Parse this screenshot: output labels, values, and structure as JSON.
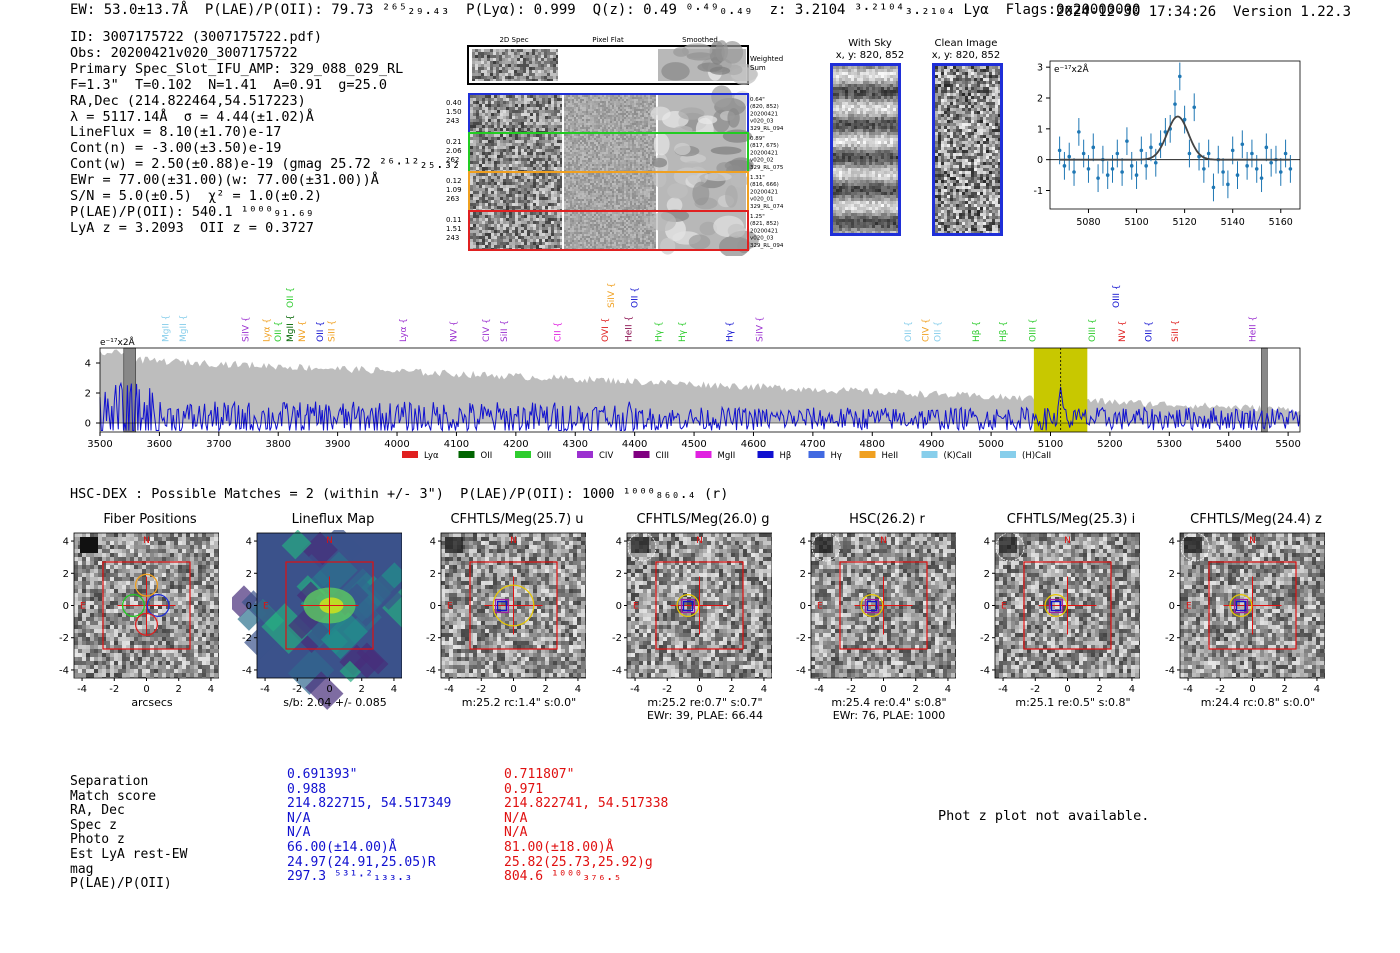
{
  "header": {
    "line": "EW: 53.0±13.7Å  P(LAE)/P(OII): 79.73 ²⁶⁵₂₉.₄₃  P(Lyα): 0.999  Q(z): 0.49 ⁰·⁴⁹₀.₄₉  z: 3.2104 ³·²¹⁰⁴₃.₂₁₀₄ Lyα  Flags:0x20000000",
    "date_version": "2024-12-30 17:34:26  Version 1.22.3"
  },
  "info": [
    "ID: 3007175722 (3007175722.pdf)",
    "Obs: 20200421v020_3007175722",
    "Primary Spec_Slot_IFU_AMP: 329_088_029_RL",
    "F=1.3\"  T=0.102  N=1.41  A=0.91  g=25.0",
    "RA,Dec (214.822464,54.517223)",
    "λ = 5117.14Å  σ = 4.44(±1.02)Å",
    "LineFlux = 8.10(±1.70)e-17",
    "Cont(n) = -3.00(±3.50)e-19",
    "Cont(w) = 2.50(±0.88)e-19 (gmag 25.72 ²⁶·¹²₂₅.₃₂ *)",
    "EWr = 77.00(±31.00)(w: 77.00(±31.00))Å",
    "S/N = 5.0(±0.5)  χ² = 1.0(±0.2)",
    "P(LAE)/P(OII): 540.1 ¹⁰⁰⁰₉₁.₆₉",
    "LyA z = 3.2093  OII z = 0.3727"
  ],
  "cutouts": {
    "col_headers": [
      "2D Spec",
      "Pixel Flat",
      "Smoothed"
    ],
    "weighted_sum_label": "Weighted Sum",
    "rows": [
      {
        "left": [
          "0.40",
          "1.50",
          "243"
        ],
        "right": [
          "0.64\"",
          "(820, 852)",
          "20200421",
          "v020_03",
          "329_RL_094"
        ],
        "color": "#1f2fd8"
      },
      {
        "left": [
          "0.21",
          "2.06",
          "262"
        ],
        "right": [
          "0.89\"",
          "(817, 675)",
          "20200421",
          "v020_02",
          "329_RL_075"
        ],
        "color": "#22cc22"
      },
      {
        "left": [
          "0.12",
          "1.09",
          "263"
        ],
        "right": [
          "1.31\"",
          "(816, 666)",
          "20200421",
          "v020_01",
          "329_RL_074"
        ],
        "color": "#f0a020"
      },
      {
        "left": [
          "0.11",
          "1.51",
          "243"
        ],
        "right": [
          "1.25\"",
          "(821, 852)",
          "20200421",
          "v020_03",
          "329_RL_094"
        ],
        "color": "#e02020"
      }
    ]
  },
  "sky": {
    "with_sky_title": "With Sky",
    "with_sky_coords": "x, y: 820, 852",
    "clean_title": "Clean Image",
    "clean_coords": "x, y: 820, 852"
  },
  "chart_data": [
    {
      "type": "line",
      "name": "line-fit",
      "ylabel_unit": "e⁻¹⁷x2Å",
      "xlim": [
        5064,
        5168
      ],
      "ylim": [
        -1.6,
        3.2
      ],
      "xticks": [
        5080,
        5100,
        5120,
        5140,
        5160
      ],
      "yticks": [
        -1,
        0,
        1,
        2,
        3
      ],
      "points": [
        {
          "x": 5068,
          "y": 0.3,
          "e": 0.45
        },
        {
          "x": 5070,
          "y": -0.2,
          "e": 0.45
        },
        {
          "x": 5072,
          "y": 0.1,
          "e": 0.45
        },
        {
          "x": 5074,
          "y": -0.4,
          "e": 0.45
        },
        {
          "x": 5076,
          "y": 0.9,
          "e": 0.45
        },
        {
          "x": 5078,
          "y": 0.2,
          "e": 0.45
        },
        {
          "x": 5080,
          "y": -0.3,
          "e": 0.45
        },
        {
          "x": 5082,
          "y": 0.4,
          "e": 0.45
        },
        {
          "x": 5084,
          "y": -0.6,
          "e": 0.45
        },
        {
          "x": 5086,
          "y": 0.0,
          "e": 0.45
        },
        {
          "x": 5088,
          "y": -0.5,
          "e": 0.45
        },
        {
          "x": 5090,
          "y": -0.3,
          "e": 0.45
        },
        {
          "x": 5092,
          "y": 0.2,
          "e": 0.45
        },
        {
          "x": 5094,
          "y": -0.4,
          "e": 0.45
        },
        {
          "x": 5096,
          "y": 0.6,
          "e": 0.45
        },
        {
          "x": 5098,
          "y": -0.2,
          "e": 0.45
        },
        {
          "x": 5100,
          "y": -0.5,
          "e": 0.45
        },
        {
          "x": 5102,
          "y": 0.3,
          "e": 0.45
        },
        {
          "x": 5104,
          "y": -0.2,
          "e": 0.45
        },
        {
          "x": 5106,
          "y": 0.4,
          "e": 0.45
        },
        {
          "x": 5108,
          "y": -0.1,
          "e": 0.45
        },
        {
          "x": 5110,
          "y": 0.5,
          "e": 0.45
        },
        {
          "x": 5112,
          "y": 0.9,
          "e": 0.45
        },
        {
          "x": 5114,
          "y": 1.0,
          "e": 0.45
        },
        {
          "x": 5116,
          "y": 1.8,
          "e": 0.45
        },
        {
          "x": 5118,
          "y": 2.7,
          "e": 0.45
        },
        {
          "x": 5120,
          "y": 1.3,
          "e": 0.45
        },
        {
          "x": 5122,
          "y": 0.2,
          "e": 0.45
        },
        {
          "x": 5124,
          "y": 1.7,
          "e": 0.45
        },
        {
          "x": 5126,
          "y": 0.1,
          "e": 0.45
        },
        {
          "x": 5128,
          "y": -0.3,
          "e": 0.45
        },
        {
          "x": 5130,
          "y": 0.2,
          "e": 0.45
        },
        {
          "x": 5132,
          "y": -0.9,
          "e": 0.45
        },
        {
          "x": 5134,
          "y": 0.0,
          "e": 0.45
        },
        {
          "x": 5136,
          "y": -0.4,
          "e": 0.45
        },
        {
          "x": 5138,
          "y": -0.8,
          "e": 0.45
        },
        {
          "x": 5140,
          "y": 0.3,
          "e": 0.45
        },
        {
          "x": 5142,
          "y": -0.5,
          "e": 0.45
        },
        {
          "x": 5144,
          "y": 0.5,
          "e": 0.45
        },
        {
          "x": 5146,
          "y": -0.2,
          "e": 0.45
        },
        {
          "x": 5148,
          "y": 0.2,
          "e": 0.45
        },
        {
          "x": 5150,
          "y": -0.3,
          "e": 0.45
        },
        {
          "x": 5152,
          "y": -0.6,
          "e": 0.45
        },
        {
          "x": 5154,
          "y": 0.4,
          "e": 0.45
        },
        {
          "x": 5156,
          "y": -0.1,
          "e": 0.45
        },
        {
          "x": 5158,
          "y": 0.0,
          "e": 0.45
        },
        {
          "x": 5160,
          "y": -0.4,
          "e": 0.45
        },
        {
          "x": 5162,
          "y": 0.2,
          "e": 0.45
        },
        {
          "x": 5164,
          "y": -0.3,
          "e": 0.45
        }
      ],
      "fit": {
        "center": 5117.14,
        "sigma": 4.44,
        "amplitude": 1.4,
        "baseline": 0.0
      }
    },
    {
      "type": "line",
      "name": "full-spectrum",
      "ylabel_unit": "e⁻¹⁷x2Å",
      "xlim": [
        3500,
        5520
      ],
      "ylim": [
        -0.6,
        5.0
      ],
      "xticks": [
        3500,
        3600,
        3700,
        3800,
        3900,
        4000,
        4100,
        4200,
        4300,
        4400,
        4500,
        4600,
        4700,
        4800,
        4900,
        5000,
        5100,
        5200,
        5300,
        5400,
        5500
      ],
      "yticks": [
        0,
        2,
        4
      ],
      "highlight_range": [
        5072,
        5162
      ],
      "line_marker": 5117.14,
      "masked_ranges": [
        [
          3540,
          3560
        ],
        [
          5455,
          5465
        ]
      ],
      "line_labels": [
        {
          "x": 3610,
          "label": "MgII",
          "color": "#87ceeb"
        },
        {
          "x": 3640,
          "label": "MgII",
          "color": "#87ceeb"
        },
        {
          "x": 3745,
          "label": "SiIV",
          "color": "#9b30d0"
        },
        {
          "x": 3780,
          "label": "Lyα",
          "color": "#f0a020"
        },
        {
          "x": 3800,
          "label": "OII",
          "color": "#2ecc2e"
        },
        {
          "x": 3820,
          "label": "MgII",
          "color": "#006400"
        },
        {
          "x": 3840,
          "label": "NV",
          "color": "#f0a020"
        },
        {
          "x": 3870,
          "label": "OII",
          "color": "#1010d0"
        },
        {
          "x": 3890,
          "label": "SiII",
          "color": "#f0a020"
        },
        {
          "x": 4010,
          "label": "Lyα",
          "color": "#9b30d0"
        },
        {
          "x": 4095,
          "label": "NV",
          "color": "#9b30d0"
        },
        {
          "x": 4150,
          "label": "CIV",
          "color": "#9b30d0"
        },
        {
          "x": 4180,
          "label": "SiII",
          "color": "#9b30d0"
        },
        {
          "x": 4270,
          "label": "CII",
          "color": "#e020e0"
        },
        {
          "x": 4350,
          "label": "OVI",
          "color": "#e02020"
        },
        {
          "x": 4390,
          "label": "HeII",
          "color": "#8b1050"
        },
        {
          "x": 4440,
          "label": "Hγ",
          "color": "#2ecc2e"
        },
        {
          "x": 4480,
          "label": "Hγ",
          "color": "#2ecc2e"
        },
        {
          "x": 4560,
          "label": "Hγ",
          "color": "#1010d0"
        },
        {
          "x": 4610,
          "label": "SiIV",
          "color": "#9b30d0"
        },
        {
          "x": 4860,
          "label": "OII",
          "color": "#87ceeb"
        },
        {
          "x": 4890,
          "label": "CIV",
          "color": "#f0a020"
        },
        {
          "x": 4910,
          "label": "OII",
          "color": "#87ceeb"
        },
        {
          "x": 4975,
          "label": "Hβ",
          "color": "#2ecc2e"
        },
        {
          "x": 5020,
          "label": "Hβ",
          "color": "#2ecc2e"
        },
        {
          "x": 5070,
          "label": "OIII",
          "color": "#2ecc2e"
        },
        {
          "x": 5170,
          "label": "OIII",
          "color": "#2ecc2e"
        },
        {
          "x": 5220,
          "label": "NV",
          "color": "#e02020"
        },
        {
          "x": 5265,
          "label": "OII",
          "color": "#1010d0"
        },
        {
          "x": 5310,
          "label": "SiII",
          "color": "#e02020"
        },
        {
          "x": 5440,
          "label": "HeII",
          "color": "#9b30d0"
        }
      ],
      "upper_labels": [
        {
          "x": 3820,
          "label": "OII",
          "color": "#2ecc2e"
        },
        {
          "x": 4360,
          "label": "SiIV",
          "color": "#f0a020"
        },
        {
          "x": 4400,
          "label": "OII",
          "color": "#1010d0"
        },
        {
          "x": 5210,
          "label": "OIII",
          "color": "#1010d0"
        }
      ],
      "legend": [
        {
          "label": "Lyα",
          "color": "#e02020"
        },
        {
          "label": "OII",
          "color": "#006400"
        },
        {
          "label": "OIII",
          "color": "#2ecc2e"
        },
        {
          "label": "CIV",
          "color": "#9b30d0"
        },
        {
          "label": "CIII",
          "color": "#800080"
        },
        {
          "label": "MgII",
          "color": "#e020e0"
        },
        {
          "label": "Hβ",
          "color": "#1010d0"
        },
        {
          "label": "Hγ",
          "color": "#4169e1"
        },
        {
          "label": "HeII",
          "color": "#f0a020"
        },
        {
          "label": "(K)CaII",
          "color": "#87ceeb"
        },
        {
          "label": "(H)CaII",
          "color": "#87ceeb"
        }
      ]
    }
  ],
  "matches_header": "HSC-DEX : Possible Matches = 2 (within +/- 3\")  P(LAE)/P(OII): 1000 ¹⁰⁰⁰₈₆₀.₄ (r)",
  "cutout_panels": [
    {
      "title": "Fiber Positions",
      "caption1": "arcsecs",
      "caption2": ""
    },
    {
      "title": "Lineflux Map",
      "caption1": "s/b: 2.04 +/- 0.085",
      "caption2": ""
    },
    {
      "title": "CFHTLS/Meg(25.7) u",
      "caption1": "m:25.2 rc:1.4\"  s:0.0\"",
      "caption2": ""
    },
    {
      "title": "CFHTLS/Meg(26.0) g",
      "caption1": "m:25.2  re:0.7\"  s:0.7\"",
      "caption2": "EWr: 39, PLAE: 66.44"
    },
    {
      "title": "HSC(26.2) r",
      "caption1": "m:25.4  re:0.4\"  s:0.8\"",
      "caption2": "EWr: 76, PLAE: 1000"
    },
    {
      "title": "CFHTLS/Meg(25.3) i",
      "caption1": "m:25.1  re:0.5\"  s:0.8\"",
      "caption2": ""
    },
    {
      "title": "CFHTLS/Meg(24.4) z",
      "caption1": "m:24.4 rc:0.8\"  s:0.0\"",
      "caption2": ""
    }
  ],
  "cutout_axis": {
    "ticks": [
      "-4",
      "-2",
      "0",
      "2",
      "4"
    ],
    "north": "N",
    "east": "E"
  },
  "match_table": {
    "labels": [
      "Separation",
      "Match score",
      "RA, Dec",
      "Spec z",
      "Photo z",
      "Est LyA rest-EW",
      "mag",
      "P(LAE)/P(OII)"
    ],
    "match1": [
      "0.691393\"",
      "0.988",
      "214.822715, 54.517349",
      "N/A",
      "N/A",
      "66.00(±14.00)Å",
      "24.97(24.91,25.05)R",
      "297.3 ⁵³¹·²₁₃₃.₃"
    ],
    "match2": [
      "0.711807\"",
      "0.971",
      "214.822741, 54.517338",
      "N/A",
      "N/A",
      "81.00(±18.00)Å",
      "25.82(25.73,25.92)g",
      "804.6 ¹⁰⁰⁰₃₇₆.₅"
    ],
    "color1": "#1010d0",
    "color2": "#e01010"
  },
  "photz_message": "Phot z plot not available."
}
